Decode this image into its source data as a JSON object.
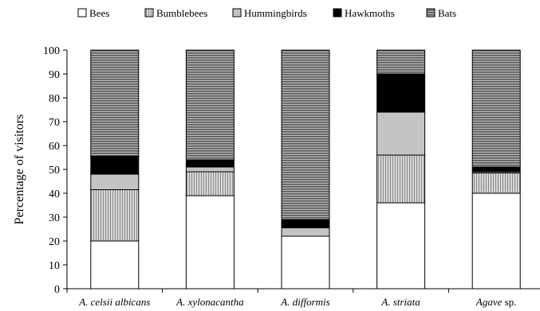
{
  "chart_data": {
    "type": "bar",
    "stacked": true,
    "title": "",
    "xlabel": "",
    "ylabel": "Percentage of visitors",
    "ylim": [
      0,
      100
    ],
    "yticks": [
      0,
      10,
      20,
      30,
      40,
      50,
      60,
      70,
      80,
      90,
      100
    ],
    "grid": false,
    "legend_position": "top",
    "categories": [
      {
        "italic": "A. celsii albicans",
        "plain": ""
      },
      {
        "italic": "A. xylonacantha",
        "plain": ""
      },
      {
        "italic": "A. difformis",
        "plain": ""
      },
      {
        "italic": "A. striata",
        "plain": ""
      },
      {
        "italic": "Agave",
        "plain": " sp."
      }
    ],
    "series": [
      {
        "name": "Bees",
        "pattern": "white",
        "values": [
          20,
          39,
          22,
          36,
          40
        ]
      },
      {
        "name": "Bumblebees",
        "pattern": "vertical",
        "values": [
          21.5,
          10,
          0,
          20,
          8.5
        ]
      },
      {
        "name": "Hummingbirds",
        "pattern": "lightgray",
        "values": [
          6.5,
          2,
          3.5,
          18,
          0.5
        ]
      },
      {
        "name": "Hawkmoths",
        "pattern": "black",
        "values": [
          7.5,
          3,
          3.5,
          16,
          2
        ]
      },
      {
        "name": "Bats",
        "pattern": "horizontal",
        "values": [
          44.5,
          46,
          71,
          10,
          49
        ]
      }
    ]
  }
}
